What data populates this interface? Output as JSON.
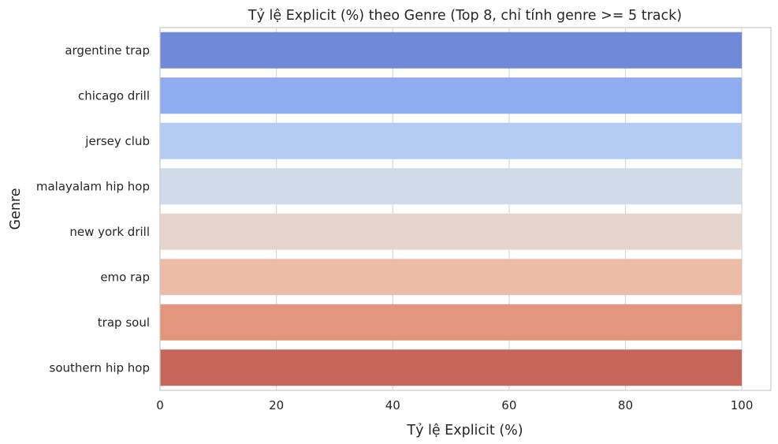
{
  "chart_data": {
    "type": "bar",
    "orientation": "horizontal",
    "title": "Tỷ lệ Explicit (%) theo Genre (Top 8, chỉ tính genre >= 5 track)",
    "xlabel": "Tỷ lệ Explicit (%)",
    "ylabel": "Genre",
    "categories": [
      "argentine trap",
      "chicago drill",
      "jersey club",
      "malayalam hip hop",
      "new york drill",
      "emo rap",
      "trap soul",
      "southern hip hop"
    ],
    "values": [
      100,
      100,
      100,
      100,
      100,
      100,
      100,
      100
    ],
    "xlim": [
      0,
      105
    ],
    "xticks": [
      0,
      20,
      40,
      60,
      80,
      100
    ],
    "grid": true,
    "legend": "none",
    "colors": [
      "#6f88d8",
      "#8fadee",
      "#b4cbf4",
      "#d0dbe9",
      "#e6d5cc",
      "#edbca6",
      "#e2967e",
      "#c6665b"
    ]
  }
}
